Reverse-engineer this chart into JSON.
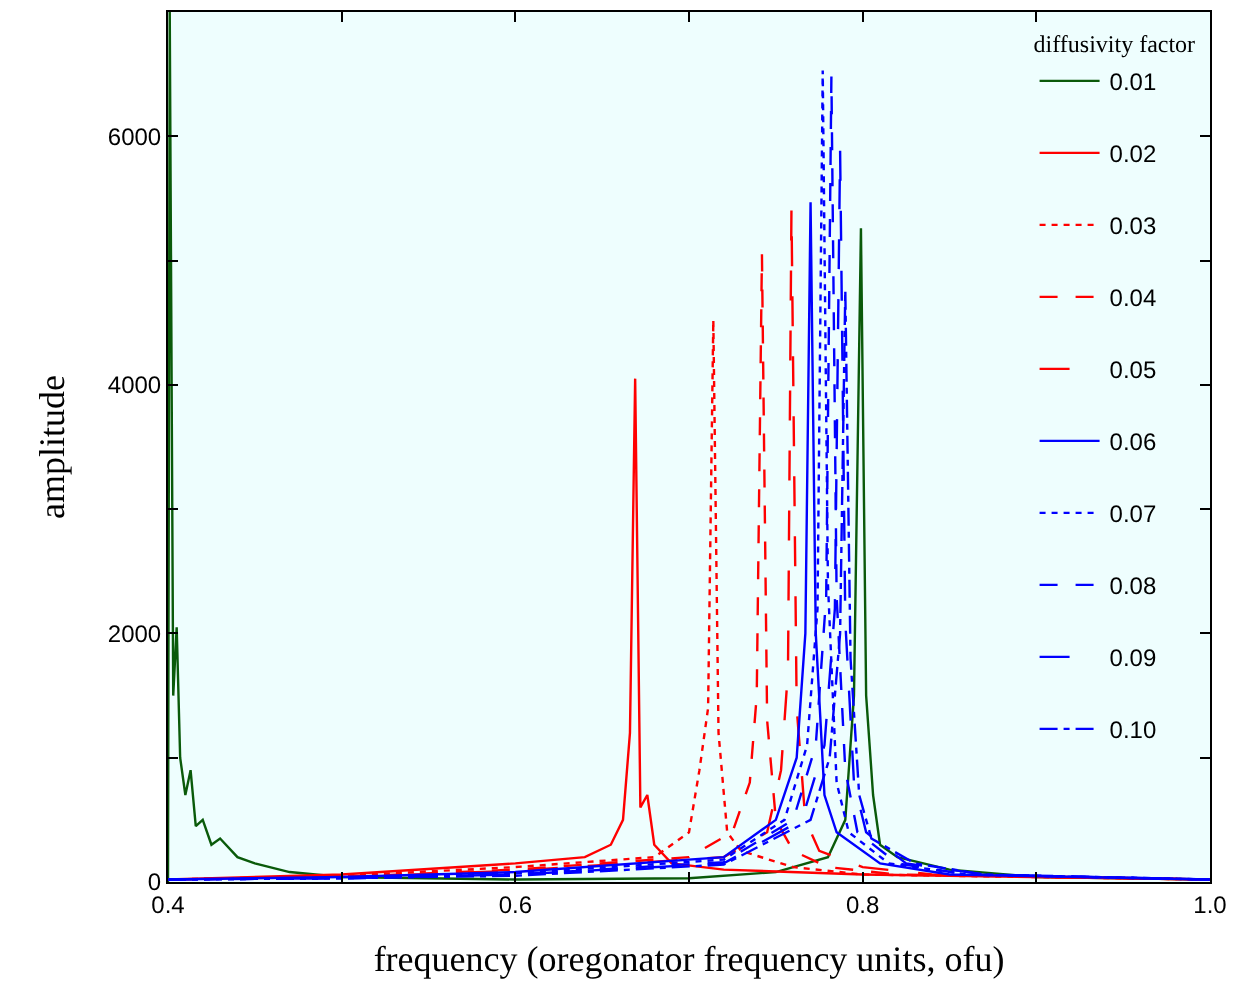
{
  "chart_data": {
    "type": "line",
    "xlabel": "frequency (oregonator frequency units, ofu)",
    "ylabel": "amplitude",
    "legend_title": "diffusivity factor",
    "legend": "top right",
    "grid": false,
    "xlim": [
      0.4,
      1.0
    ],
    "xticks": [
      0.4,
      {
        "value": 0.5,
        "label": null
      },
      0.6,
      {
        "value": 0.7,
        "label": null
      },
      0.8,
      {
        "value": 0.9,
        "label": null
      },
      {
        "value": 1.0,
        "label": "1.0"
      }
    ],
    "ylim": [
      0,
      7000
    ],
    "yticks": [
      0,
      {
        "value": 1000,
        "label": null
      },
      2000,
      {
        "value": 3000,
        "label": null
      },
      4000,
      {
        "value": 5000,
        "label": null
      },
      6000
    ],
    "series": [
      {
        "name": "0.01",
        "color": "#0a5a0a",
        "line_style": "solid",
        "x": [
          0.4,
          0.401,
          0.403,
          0.405,
          0.407,
          0.41,
          0.413,
          0.416,
          0.42,
          0.425,
          0.43,
          0.44,
          0.45,
          0.47,
          0.5,
          0.6,
          0.7,
          0.75,
          0.78,
          0.79,
          0.795,
          0.799,
          0.802,
          0.806,
          0.81,
          0.82,
          0.85,
          0.9,
          1.0
        ],
        "values": [
          0,
          7000,
          1500,
          2050,
          1000,
          700,
          900,
          450,
          500,
          300,
          350,
          200,
          150,
          80,
          40,
          20,
          30,
          80,
          200,
          500,
          1500,
          5260,
          1500,
          700,
          300,
          200,
          100,
          40,
          20
        ]
      },
      {
        "name": "0.02",
        "color": "#ff0000",
        "line_style": "solid",
        "x": [
          0.4,
          0.5,
          0.6,
          0.64,
          0.655,
          0.662,
          0.666,
          0.669,
          0.672,
          0.676,
          0.68,
          0.69,
          0.72,
          0.8,
          1.0
        ],
        "values": [
          20,
          60,
          150,
          200,
          300,
          500,
          1200,
          4050,
          600,
          700,
          300,
          150,
          100,
          60,
          20
        ]
      },
      {
        "name": "0.03",
        "color": "#ff0000",
        "line_style": "dotted",
        "x": [
          0.4,
          0.5,
          0.6,
          0.68,
          0.7,
          0.706,
          0.711,
          0.714,
          0.717,
          0.722,
          0.73,
          0.76,
          0.8,
          1.0
        ],
        "values": [
          20,
          50,
          120,
          200,
          400,
          900,
          1400,
          4520,
          1200,
          400,
          250,
          120,
          60,
          20
        ]
      },
      {
        "name": "0.04",
        "color": "#ff0000",
        "line_style": "dash",
        "x": [
          0.4,
          0.5,
          0.6,
          0.7,
          0.725,
          0.735,
          0.739,
          0.742,
          0.745,
          0.75,
          0.76,
          0.78,
          0.82,
          1.0
        ],
        "values": [
          20,
          40,
          100,
          200,
          400,
          800,
          1500,
          5050,
          1300,
          500,
          250,
          120,
          60,
          20
        ]
      },
      {
        "name": "0.05",
        "color": "#ff0000",
        "line_style": "longdash",
        "x": [
          0.4,
          0.5,
          0.6,
          0.72,
          0.745,
          0.753,
          0.757,
          0.759,
          0.762,
          0.767,
          0.775,
          0.8,
          0.84,
          1.0
        ],
        "values": [
          20,
          40,
          90,
          200,
          400,
          900,
          1700,
          5420,
          1400,
          500,
          250,
          120,
          60,
          20
        ]
      },
      {
        "name": "0.06",
        "color": "#0000ff",
        "line_style": "solid",
        "x": [
          0.4,
          0.5,
          0.6,
          0.72,
          0.75,
          0.762,
          0.767,
          0.77,
          0.773,
          0.778,
          0.785,
          0.81,
          0.85,
          1.0
        ],
        "values": [
          20,
          40,
          80,
          200,
          500,
          1000,
          2000,
          5470,
          2000,
          700,
          400,
          150,
          60,
          20
        ]
      },
      {
        "name": "0.07",
        "color": "#0000ff",
        "line_style": "dotted",
        "x": [
          0.4,
          0.5,
          0.6,
          0.72,
          0.755,
          0.768,
          0.774,
          0.777,
          0.78,
          0.785,
          0.792,
          0.815,
          0.86,
          1.0
        ],
        "values": [
          20,
          30,
          70,
          180,
          500,
          1100,
          2200,
          6530,
          2400,
          800,
          400,
          150,
          60,
          20
        ]
      },
      {
        "name": "0.08",
        "color": "#0000ff",
        "line_style": "dash",
        "x": [
          0.4,
          0.5,
          0.6,
          0.72,
          0.76,
          0.773,
          0.779,
          0.782,
          0.785,
          0.79,
          0.797,
          0.82,
          0.86,
          1.0
        ],
        "values": [
          20,
          30,
          60,
          160,
          500,
          1100,
          2300,
          6480,
          2300,
          900,
          400,
          150,
          60,
          20
        ]
      },
      {
        "name": "0.09",
        "color": "#0000ff",
        "line_style": "longdash",
        "x": [
          0.4,
          0.5,
          0.6,
          0.72,
          0.765,
          0.778,
          0.784,
          0.787,
          0.79,
          0.795,
          0.802,
          0.825,
          0.87,
          1.0
        ],
        "values": [
          20,
          30,
          60,
          150,
          500,
          1100,
          2200,
          5890,
          2100,
          800,
          400,
          150,
          60,
          20
        ]
      },
      {
        "name": "0.10",
        "color": "#0000ff",
        "line_style": "dashdot",
        "x": [
          0.4,
          0.5,
          0.6,
          0.72,
          0.77,
          0.781,
          0.787,
          0.79,
          0.793,
          0.798,
          0.805,
          0.83,
          0.87,
          1.0
        ],
        "values": [
          20,
          30,
          50,
          140,
          500,
          1000,
          2000,
          4760,
          1800,
          700,
          350,
          150,
          60,
          20
        ]
      }
    ]
  }
}
